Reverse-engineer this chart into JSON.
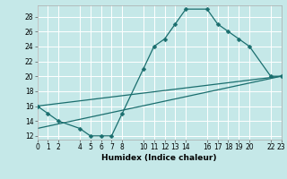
{
  "xlabel": "Humidex (Indice chaleur)",
  "bg_color": "#c5e8e8",
  "grid_color": "#ffffff",
  "line_color": "#1a6e6e",
  "line1_x": [
    0,
    1,
    2,
    4,
    5,
    6,
    7,
    8,
    10,
    11,
    12,
    13,
    14,
    16,
    17,
    18,
    19,
    20,
    22,
    23
  ],
  "line1_y": [
    16,
    15,
    14,
    13,
    12,
    12,
    12,
    15,
    21,
    24,
    25,
    27,
    29,
    29,
    27,
    26,
    25,
    24,
    20,
    20
  ],
  "line2_x": [
    0,
    23
  ],
  "line2_y": [
    16,
    20
  ],
  "line3_x": [
    0,
    23
  ],
  "line3_y": [
    13,
    20
  ],
  "xlim": [
    0,
    23
  ],
  "ylim": [
    11.5,
    29.5
  ],
  "yticks": [
    12,
    14,
    16,
    18,
    20,
    22,
    24,
    26,
    28
  ],
  "xticks": [
    0,
    1,
    2,
    4,
    5,
    6,
    7,
    8,
    10,
    11,
    12,
    13,
    14,
    16,
    17,
    18,
    19,
    20,
    22,
    23
  ],
  "xlabel_fontsize": 6.5,
  "tick_fontsize": 5.5
}
